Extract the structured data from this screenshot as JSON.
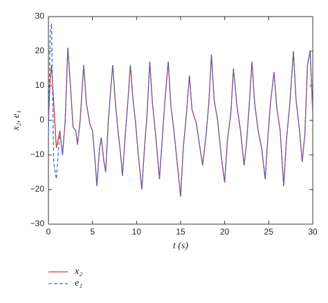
{
  "chart_data": {
    "type": "line",
    "xlabel": "t (s)",
    "ylabel": "x₂, e₁",
    "x": [
      0,
      0.2,
      0.35,
      0.6,
      0.9,
      1.3,
      1.6,
      1.9,
      2.2,
      2.5,
      2.8,
      3.1,
      3.3,
      3.6,
      4.0,
      4.3,
      4.7,
      5.0,
      5.3,
      5.5,
      5.8,
      6.0,
      6.3,
      6.5,
      6.8,
      7.1,
      7.3,
      7.6,
      7.9,
      8.2,
      8.4,
      8.7,
      9.0,
      9.3,
      9.6,
      9.9,
      10.2,
      10.6,
      10.9,
      11.2,
      11.5,
      11.8,
      12.2,
      12.6,
      12.9,
      13.2,
      13.6,
      13.9,
      14.2,
      14.6,
      15.0,
      15.3,
      15.6,
      16.0,
      16.3,
      16.8,
      17.2,
      17.5,
      17.9,
      18.2,
      18.5,
      18.8,
      19.2,
      19.6,
      20.0,
      20.3,
      20.7,
      21.0,
      21.4,
      21.8,
      22.2,
      22.5,
      22.8,
      23.1,
      23.4,
      23.8,
      24.2,
      24.6,
      24.9,
      25.2,
      25.6,
      25.9,
      26.3,
      26.7,
      27.0,
      27.4,
      27.8,
      28.1,
      28.5,
      28.8,
      29.1,
      29.4,
      29.7,
      30.0
    ],
    "series": [
      {
        "name": "x₂",
        "color": "#d0383a",
        "style": "solid",
        "values": [
          0,
          12,
          16,
          5,
          -8,
          -3,
          -10,
          0,
          21,
          10,
          -2,
          -3,
          -7,
          0,
          16,
          5,
          -1,
          -3,
          -12,
          -19,
          -8,
          -5,
          -12,
          -15,
          0,
          10,
          16,
          5,
          -3,
          -10,
          -16,
          -5,
          5,
          16,
          6,
          -1,
          -10,
          -20,
          -8,
          2,
          17,
          5,
          -5,
          -17,
          -6,
          5,
          17,
          4,
          -2,
          -12,
          -22,
          -8,
          0,
          13,
          3,
          -1,
          -8,
          -13,
          -4,
          5,
          19,
          6,
          0,
          -10,
          -18,
          -6,
          2,
          15,
          4,
          -3,
          -13,
          -6,
          5,
          17,
          5,
          -3,
          -8,
          -17,
          -5,
          5,
          14,
          4,
          -3,
          -19,
          -6,
          5,
          20,
          6,
          -3,
          -12,
          -4,
          16,
          20,
          2
        ]
      },
      {
        "name": "e₁",
        "color": "#3b6fd0",
        "style": "dashed",
        "values": [
          -5,
          25,
          28,
          -12,
          -17,
          -3,
          -10,
          0,
          21,
          10,
          -2,
          -3,
          -7,
          0,
          16,
          5,
          -1,
          -3,
          -12,
          -19,
          -8,
          -5,
          -12,
          -15,
          0,
          10,
          16,
          5,
          -3,
          -10,
          -16,
          -5,
          5,
          16,
          6,
          -1,
          -10,
          -20,
          -8,
          2,
          17,
          5,
          -5,
          -17,
          -6,
          5,
          17,
          4,
          -2,
          -12,
          -22,
          -8,
          0,
          13,
          3,
          -1,
          -8,
          -13,
          -4,
          5,
          19,
          6,
          0,
          -10,
          -18,
          -6,
          2,
          15,
          4,
          -3,
          -13,
          -6,
          5,
          17,
          5,
          -3,
          -8,
          -17,
          -5,
          5,
          14,
          4,
          -3,
          -19,
          -6,
          5,
          20,
          6,
          -3,
          -12,
          -4,
          16,
          20,
          2
        ]
      }
    ],
    "xlim": [
      0,
      30
    ],
    "xticks": [
      0,
      5,
      10,
      15,
      20,
      25,
      30
    ],
    "ylim": [
      -30,
      30
    ],
    "yticks": [
      {
        "value": -30,
        "label": "−30"
      },
      {
        "value": -20,
        "label": "−20"
      },
      {
        "value": -10,
        "label": "−10"
      },
      0,
      10,
      20,
      30
    ],
    "grid": false,
    "legend": "bottom-left"
  }
}
